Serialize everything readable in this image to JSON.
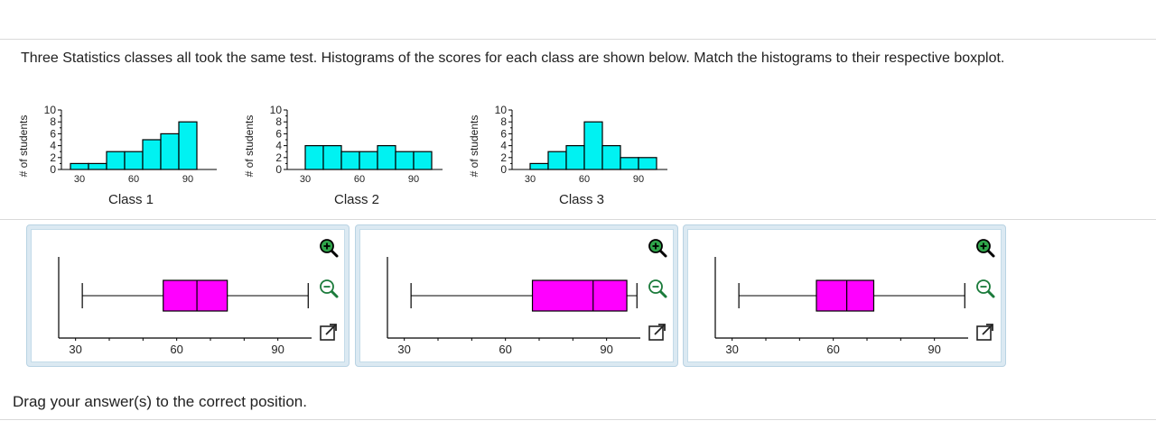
{
  "question": "Three Statistics classes all took the same test. Histograms of the scores for each class are shown below. Match the histograms to their respective boxplot.",
  "instruction": "Drag your answer(s) to the correct position.",
  "colors": {
    "histogram_fill": "#00f2f2",
    "boxplot_fill": "#ff00ff",
    "card_border": "#b9d3e3"
  },
  "chart_data": [
    {
      "type": "bar",
      "title": "Class 1",
      "ylabel": "# of students",
      "x_ticks": [
        "30",
        "60",
        "90"
      ],
      "y_ticks": [
        "0",
        "2",
        "4",
        "6",
        "8",
        "10"
      ],
      "bin_width": 10,
      "bins": [
        {
          "x": 25,
          "count": 1
        },
        {
          "x": 35,
          "count": 1
        },
        {
          "x": 45,
          "count": 3
        },
        {
          "x": 55,
          "count": 3
        },
        {
          "x": 65,
          "count": 5
        },
        {
          "x": 75,
          "count": 6
        },
        {
          "x": 85,
          "count": 8
        }
      ],
      "ylim": [
        0,
        10
      ]
    },
    {
      "type": "bar",
      "title": "Class 2",
      "ylabel": "# of students",
      "x_ticks": [
        "30",
        "60",
        "90"
      ],
      "y_ticks": [
        "0",
        "2",
        "4",
        "6",
        "8",
        "10"
      ],
      "bin_width": 10,
      "bins": [
        {
          "x": 30,
          "count": 4
        },
        {
          "x": 40,
          "count": 4
        },
        {
          "x": 50,
          "count": 3
        },
        {
          "x": 60,
          "count": 3
        },
        {
          "x": 70,
          "count": 4
        },
        {
          "x": 80,
          "count": 3
        },
        {
          "x": 90,
          "count": 3
        }
      ],
      "ylim": [
        0,
        10
      ]
    },
    {
      "type": "bar",
      "title": "Class 3",
      "ylabel": "# of students",
      "x_ticks": [
        "30",
        "60",
        "90"
      ],
      "y_ticks": [
        "0",
        "2",
        "4",
        "6",
        "8",
        "10"
      ],
      "bin_width": 10,
      "bins": [
        {
          "x": 30,
          "count": 1
        },
        {
          "x": 40,
          "count": 3
        },
        {
          "x": 50,
          "count": 4
        },
        {
          "x": 60,
          "count": 8
        },
        {
          "x": 70,
          "count": 4
        },
        {
          "x": 80,
          "count": 2
        },
        {
          "x": 90,
          "count": 2
        }
      ],
      "ylim": [
        0,
        10
      ]
    },
    {
      "type": "boxplot",
      "x_ticks": [
        "30",
        "60",
        "90"
      ],
      "xlim": [
        25,
        100
      ],
      "min": 32,
      "q1": 56,
      "median": 66,
      "q3": 75,
      "max": 99
    },
    {
      "type": "boxplot",
      "x_ticks": [
        "30",
        "60",
        "90"
      ],
      "xlim": [
        25,
        100
      ],
      "min": 32,
      "q1": 68,
      "median": 86,
      "q3": 96,
      "max": 99
    },
    {
      "type": "boxplot",
      "x_ticks": [
        "30",
        "60",
        "90"
      ],
      "xlim": [
        25,
        100
      ],
      "min": 32,
      "q1": 55,
      "median": 64,
      "q3": 72,
      "max": 99
    }
  ]
}
